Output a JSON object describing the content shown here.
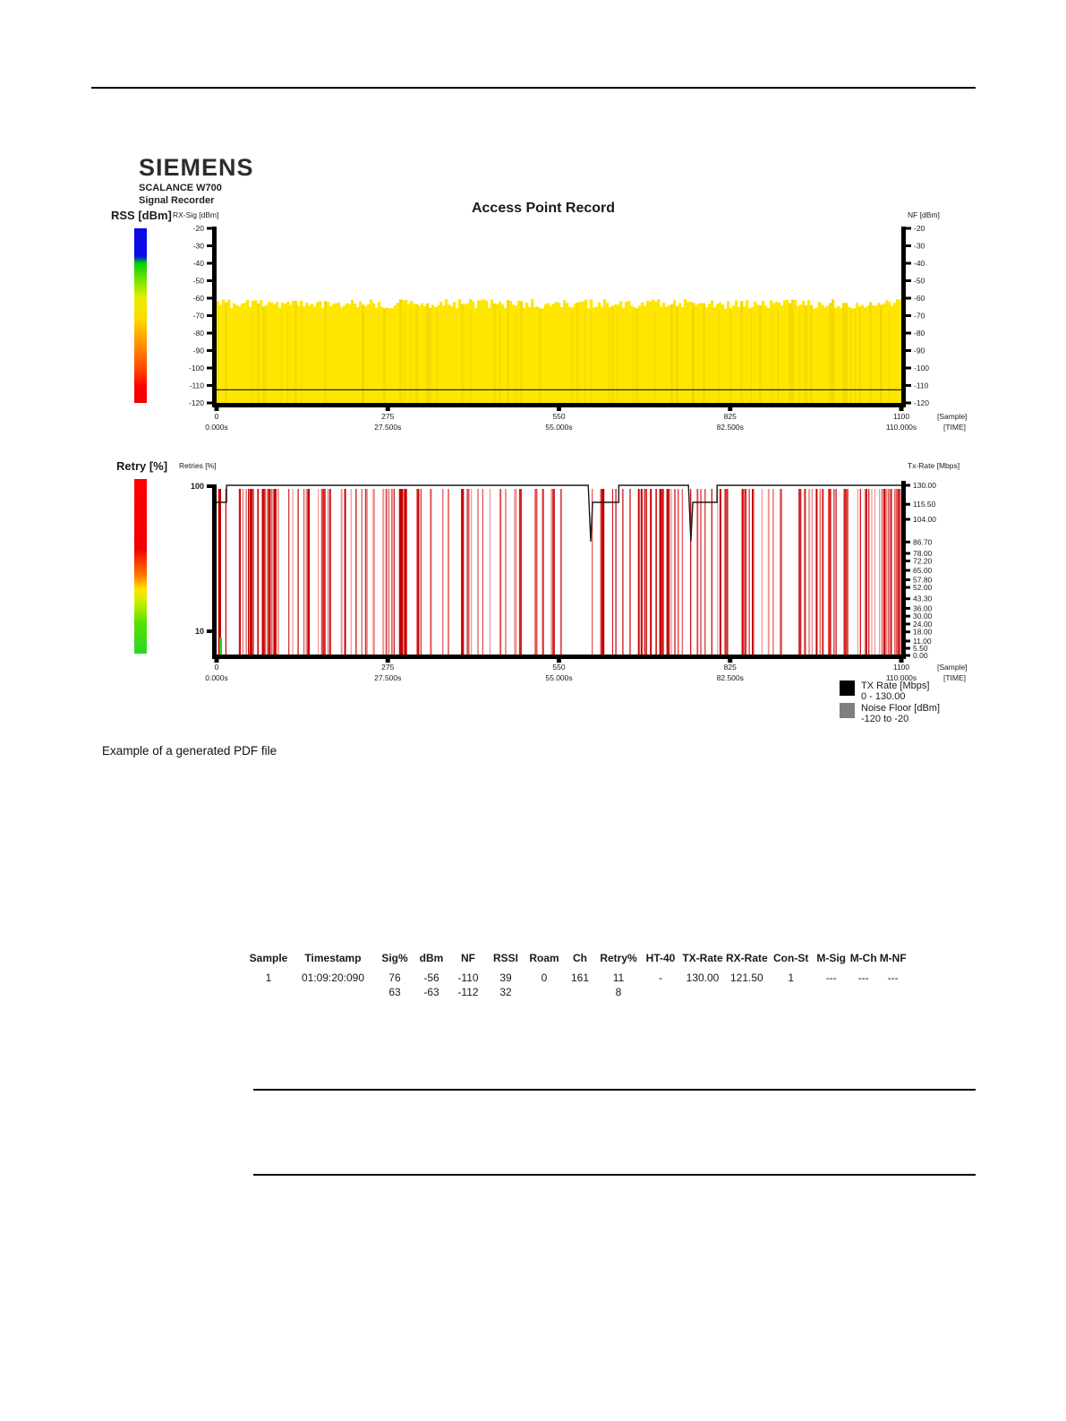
{
  "report": {
    "brand": "SIEMENS",
    "device": "SCALANCE W700",
    "app": "Signal Recorder",
    "title": "Access Point Record"
  },
  "caption": "Example of a generated PDF file",
  "chart_data": [
    {
      "type": "area",
      "name": "rx-signal-chart",
      "left_title": "RSS [dBm]",
      "left_axis_label": "RX-Sig [dBm]",
      "right_axis_label": "NF [dBm]",
      "ylim": [
        -120,
        -20
      ],
      "y_ticks": [
        -20,
        -30,
        -40,
        -50,
        -60,
        -70,
        -80,
        -90,
        -100,
        -110,
        -120
      ],
      "xlim": [
        0,
        1100
      ],
      "x_ticks": [
        0,
        275,
        550,
        825,
        1100
      ],
      "x_time_ticks": [
        "0.000s",
        "27.500s",
        "55.000s",
        "82.500s",
        "110.000s"
      ],
      "x_units": [
        "[Sample]",
        "[TIME]"
      ],
      "series": [
        {
          "name": "rx-signal-area",
          "color": "#ffe600",
          "approx_level_dbm": -63,
          "jitter_dbm": 5.5
        },
        {
          "name": "noise-floor-line",
          "color": "#2a2a00",
          "approx_level_dbm": -112.5
        }
      ],
      "texture_seed": 7
    },
    {
      "type": "bar",
      "name": "retry-chart",
      "left_title": "Retry [%]",
      "left_axis_label": "Retries [%]",
      "right_axis_label": "Tx-Rate [Mbps]",
      "y_scale": "log",
      "y_ticks": [
        100,
        10
      ],
      "right_lim": [
        0,
        130
      ],
      "right_ticks": [
        "130.00",
        "115.50",
        "104.00",
        "86.70",
        "78.00",
        "72.20",
        "65.00",
        "57.80",
        "52.00",
        "43.30",
        "36.00",
        "30.00",
        "24.00",
        "18.00",
        "11.00",
        "5.50",
        "0.00"
      ],
      "xlim": [
        0,
        1100
      ],
      "x_ticks": [
        0,
        275,
        550,
        825,
        1100
      ],
      "x_time_ticks": [
        "0.000s",
        "27.500s",
        "55.000s",
        "82.500s",
        "110.000s"
      ],
      "x_units": [
        "[Sample]",
        "[TIME]"
      ],
      "retry_lines": {
        "seed": 97,
        "count": 150,
        "colors": [
          "#c40000",
          "#d42222",
          "#e05050",
          "#eb9595"
        ],
        "clusters": [
          {
            "x": 0.075,
            "n": 16,
            "spread": 0.01
          },
          {
            "x": 0.27,
            "n": 8,
            "spread": 0.006
          },
          {
            "x": 0.62,
            "n": 6,
            "spread": 0.005
          },
          {
            "x": 0.985,
            "n": 16,
            "spread": 0.012
          }
        ]
      },
      "first_sample_marker": {
        "x_frac": 0.004,
        "color": "#2ecc2e",
        "height_frac": 0.1
      },
      "tx_rate_line": {
        "color": "#1a1a1a",
        "points": [
          [
            0,
            117
          ],
          [
            16,
            117
          ],
          [
            16,
            130
          ],
          [
            597,
            130
          ],
          [
            601,
            87
          ],
          [
            604,
            117
          ],
          [
            646,
            117
          ],
          [
            646,
            130
          ],
          [
            758,
            130
          ],
          [
            762,
            87
          ],
          [
            765,
            117
          ],
          [
            804,
            117
          ],
          [
            804,
            130
          ],
          [
            1100,
            130
          ]
        ]
      }
    }
  ],
  "legend": [
    {
      "label": "TX Rate [Mbps]",
      "range": "0 - 130.00",
      "color": "#000000"
    },
    {
      "label": "Noise Floor [dBm]",
      "range": "-120 to -20",
      "color": "#7f7f7f"
    }
  ],
  "table": {
    "headers": [
      "Sample",
      "Timestamp",
      "Sig%",
      "dBm",
      "NF",
      "RSSI",
      "Roam",
      "Ch",
      "Retry%",
      "HT-40",
      "TX-Rate",
      "RX-Rate",
      "Con-St",
      "M-Sig",
      "M-Ch",
      "M-NF"
    ],
    "rows": [
      [
        "1",
        "01:09:20:090",
        "76\n63",
        "-56\n-63",
        "-110\n-112",
        "39\n32",
        "0",
        "161",
        "11\n8",
        "-",
        "130.00",
        "121.50",
        "1",
        "---",
        "---",
        "---"
      ]
    ]
  }
}
